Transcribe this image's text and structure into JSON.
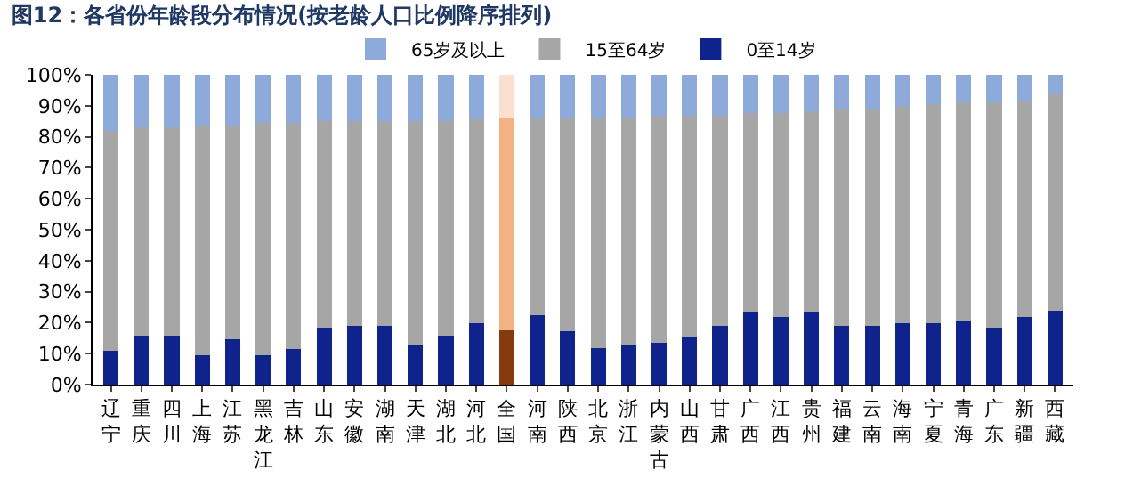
{
  "chart_data": {
    "type": "bar",
    "stacked": true,
    "title": "图12：各省份年龄段分布情况(按老龄人口比例降序排列)",
    "categories": [
      "辽宁",
      "重庆",
      "四川",
      "上海",
      "江苏",
      "黑龙江",
      "吉林",
      "山东",
      "安徽",
      "湖南",
      "天津",
      "湖北",
      "河北",
      "全国",
      "河南",
      "陕西",
      "北京",
      "浙江",
      "内蒙古",
      "山西",
      "甘肃",
      "广西",
      "江西",
      "贵州",
      "福建",
      "云南",
      "海南",
      "宁夏",
      "青海",
      "广东",
      "新疆",
      "西藏"
    ],
    "series": [
      {
        "name": "0至14岁",
        "colors": [
          "#0f238c",
          "#0f238c",
          "#0f238c",
          "#0f238c",
          "#0f238c",
          "#0f238c",
          "#0f238c",
          "#0f238c",
          "#0f238c",
          "#0f238c",
          "#0f238c",
          "#0f238c",
          "#0f238c",
          "#843c0c",
          "#0f238c",
          "#0f238c",
          "#0f238c",
          "#0f238c",
          "#0f238c",
          "#0f238c",
          "#0f238c",
          "#0f238c",
          "#0f238c",
          "#0f238c",
          "#0f238c",
          "#0f238c",
          "#0f238c",
          "#0f238c",
          "#0f238c",
          "#0f238c",
          "#0f238c",
          "#0f238c"
        ],
        "values": [
          10.8,
          15.8,
          15.8,
          9.5,
          14.8,
          9.5,
          11.6,
          18.5,
          19.1,
          19.1,
          13,
          15.8,
          19.9,
          17.6,
          22.5,
          17.2,
          11.8,
          13,
          13.6,
          15.6,
          19.1,
          23.3,
          21.9,
          23.3,
          19.1,
          19.1,
          19.9,
          19.9,
          20.5,
          18.5,
          21.9,
          23.9
        ]
      },
      {
        "name": "15至64岁",
        "colors": [
          "#a6a6a6",
          "#a6a6a6",
          "#a6a6a6",
          "#a6a6a6",
          "#a6a6a6",
          "#a6a6a6",
          "#a6a6a6",
          "#a6a6a6",
          "#a6a6a6",
          "#a6a6a6",
          "#a6a6a6",
          "#a6a6a6",
          "#a6a6a6",
          "#f4b183",
          "#a6a6a6",
          "#a6a6a6",
          "#a6a6a6",
          "#a6a6a6",
          "#a6a6a6",
          "#a6a6a6",
          "#a6a6a6",
          "#a6a6a6",
          "#a6a6a6",
          "#a6a6a6",
          "#a6a6a6",
          "#a6a6a6",
          "#a6a6a6",
          "#a6a6a6",
          "#a6a6a6",
          "#a6a6a6",
          "#a6a6a6",
          "#a6a6a6"
        ],
        "values": [
          71.1,
          67.2,
          67.2,
          74.1,
          68.8,
          74.9,
          72.8,
          66.5,
          65.9,
          65.9,
          72,
          69.2,
          65.7,
          68.6,
          63.7,
          69,
          74.4,
          73.2,
          73.2,
          71.2,
          67.7,
          64.3,
          65.7,
          64.9,
          69.9,
          69.9,
          69.8,
          70.6,
          70.6,
          72.6,
          69.8,
          69.8
        ]
      },
      {
        "name": "65岁及以上",
        "colors": [
          "#8eaadb",
          "#8eaadb",
          "#8eaadb",
          "#8eaadb",
          "#8eaadb",
          "#8eaadb",
          "#8eaadb",
          "#8eaadb",
          "#8eaadb",
          "#8eaadb",
          "#8eaadb",
          "#8eaadb",
          "#8eaadb",
          "#fbe0d0",
          "#8eaadb",
          "#8eaadb",
          "#8eaadb",
          "#8eaadb",
          "#8eaadb",
          "#8eaadb",
          "#8eaadb",
          "#8eaadb",
          "#8eaadb",
          "#8eaadb",
          "#8eaadb",
          "#8eaadb",
          "#8eaadb",
          "#8eaadb",
          "#8eaadb",
          "#8eaadb",
          "#8eaadb",
          "#8eaadb"
        ],
        "values": [
          18.1,
          17,
          17,
          16.4,
          16.4,
          15.6,
          15.6,
          15,
          15,
          15,
          15,
          15,
          14.4,
          13.8,
          13.8,
          13.8,
          13.8,
          13.8,
          13.2,
          13.2,
          13.2,
          12.4,
          12.4,
          11.8,
          11,
          11,
          10.3,
          9.5,
          8.9,
          8.9,
          8.3,
          6.3
        ]
      }
    ],
    "ylim": [
      0,
      100
    ],
    "yticks": [
      {
        "value": 0,
        "label": "0%"
      },
      {
        "value": 10,
        "label": "10%"
      },
      {
        "value": 20,
        "label": "20%"
      },
      {
        "value": 30,
        "label": "30%"
      },
      {
        "value": 40,
        "label": "40%"
      },
      {
        "value": 50,
        "label": "50%"
      },
      {
        "value": 60,
        "label": "60%"
      },
      {
        "value": 70,
        "label": "70%"
      },
      {
        "value": 80,
        "label": "80%"
      },
      {
        "value": 90,
        "label": "90%"
      },
      {
        "value": 100,
        "label": "100%"
      }
    ],
    "legend": "top"
  }
}
